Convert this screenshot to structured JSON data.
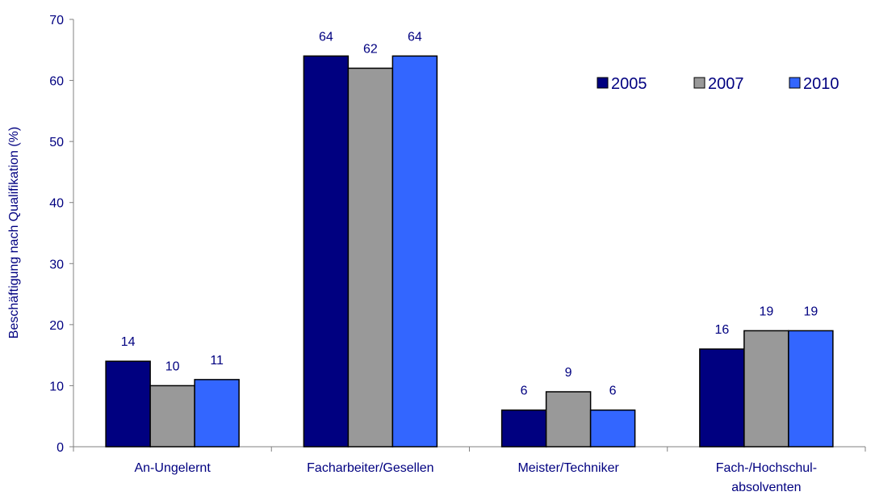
{
  "chart_data": {
    "type": "bar",
    "ylabel": "Beschäftigung nach Qualifikation (%)",
    "xlabel": "",
    "ylim": [
      0,
      70
    ],
    "yticks": [
      0,
      10,
      20,
      30,
      40,
      50,
      60,
      70
    ],
    "grid": false,
    "legend_position": "top-right",
    "categories": [
      [
        "An-Ungelernt"
      ],
      [
        "Facharbeiter/Gesellen"
      ],
      [
        "Meister/Techniker"
      ],
      [
        "Fach-/Hochschul-",
        "absolventen"
      ]
    ],
    "series": [
      {
        "name": "2005",
        "color": "#000080",
        "values": [
          14,
          64,
          6,
          16
        ]
      },
      {
        "name": "2007",
        "color": "#999999",
        "values": [
          10,
          62,
          9,
          19
        ]
      },
      {
        "name": "2010",
        "color": "#3366FF",
        "values": [
          11,
          64,
          6,
          19
        ]
      }
    ],
    "text_color": "#000080",
    "bar_outline_color": "#000000"
  }
}
